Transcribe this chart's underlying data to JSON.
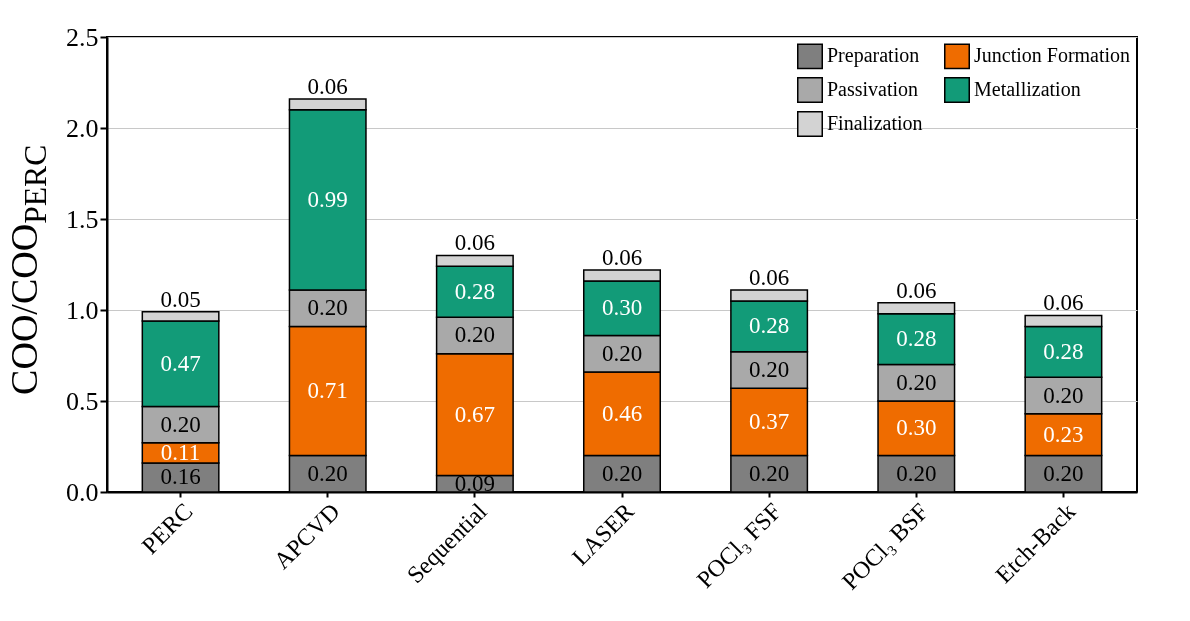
{
  "chart_data": {
    "type": "bar",
    "stacked": true,
    "ylabel": "COO/COO$_{PERC}$",
    "categories": [
      "PERC",
      "APCVD",
      "Sequential",
      "LASER",
      "POCl₃ FSF",
      "POCl₃ BSF",
      "Etch-Back"
    ],
    "series": [
      {
        "name": "Preparation",
        "color": "#7f7f7f",
        "values": [
          0.16,
          0.2,
          0.09,
          0.2,
          0.2,
          0.2,
          0.2
        ],
        "value_labels": [
          "0.16",
          "0.20",
          "0.09",
          "0.20",
          "0.20",
          "0.20",
          "0.20"
        ]
      },
      {
        "name": "Junction Formation",
        "color": "#ef6c00",
        "values": [
          0.11,
          0.71,
          0.67,
          0.46,
          0.37,
          0.3,
          0.23
        ],
        "value_labels": [
          "0.11",
          "0.71",
          "0.67",
          "0.46",
          "0.37",
          "0.30",
          "0.23"
        ]
      },
      {
        "name": "Passivation",
        "color": "#a9a9a9",
        "values": [
          0.2,
          0.2,
          0.2,
          0.2,
          0.2,
          0.2,
          0.2
        ],
        "value_labels": [
          "0.20",
          "0.20",
          "0.20",
          "0.20",
          "0.20",
          "0.20",
          "0.20"
        ]
      },
      {
        "name": "Metallization",
        "color": "#129b78",
        "values": [
          0.47,
          0.99,
          0.28,
          0.3,
          0.28,
          0.28,
          0.28
        ],
        "value_labels": [
          "0.47",
          "0.99",
          "0.28",
          "0.30",
          "0.28",
          "0.28",
          "0.28"
        ]
      },
      {
        "name": "Finalization",
        "color": "#d3d3d3",
        "values": [
          0.05,
          0.06,
          0.06,
          0.06,
          0.06,
          0.06,
          0.06
        ],
        "value_labels": [
          "0.05",
          "0.06",
          "0.06",
          "0.06",
          "0.06",
          "0.06",
          "0.06"
        ]
      }
    ],
    "ylim": [
      0,
      2.5
    ],
    "yticks": [
      {
        "value": 0,
        "label": "0.0"
      },
      {
        "value": 0.5,
        "label": "0.5"
      },
      {
        "value": 1,
        "label": "1.0"
      },
      {
        "value": 1.5,
        "label": "1.5"
      },
      {
        "value": 2,
        "label": "2.0"
      },
      {
        "value": 2.5,
        "label": "2.5"
      }
    ],
    "grid": "y",
    "legend": "top right"
  }
}
